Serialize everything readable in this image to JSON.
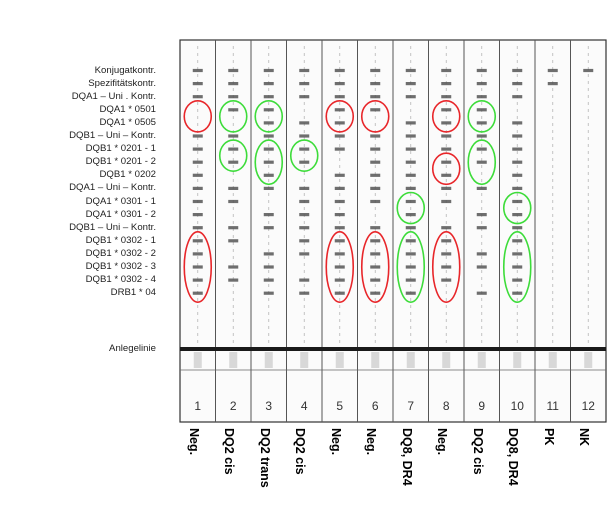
{
  "band_labels": [
    "Konjugatkontr.",
    "Spezifitätskontr.",
    "DQA1 – Uni . Kontr.",
    "DQA1 * 0501",
    "DQA1 * 0505",
    "DQB1 – Uni – Kontr.",
    "DQB1 * 0201 - 1",
    "DQB1 * 0201 - 2",
    "DQB1 * 0202",
    "DQA1 – Uni – Kontr.",
    "DQA1 * 0301 - 1",
    "DQA1 * 0301 - 2",
    "DQB1 – Uni – Kontr.",
    "DQB1 * 0302 - 1",
    "DQB1 * 0302 - 2",
    "DQB1 * 0302 - 3",
    "DQB1 * 0302 - 4",
    "DRB1 * 04"
  ],
  "baseline_label": "Anlegelinie",
  "lanes": [
    {
      "number": "1",
      "result": "Neg."
    },
    {
      "number": "2",
      "result": "DQ2 cis"
    },
    {
      "number": "3",
      "result": "DQ2 trans"
    },
    {
      "number": "4",
      "result": "DQ2 cis"
    },
    {
      "number": "5",
      "result": "Neg."
    },
    {
      "number": "6",
      "result": "Neg."
    },
    {
      "number": "7",
      "result": "DQ8, DR4"
    },
    {
      "number": "8",
      "result": "Neg."
    },
    {
      "number": "9",
      "result": "DQ2 cis"
    },
    {
      "number": "10",
      "result": "DQ8, DR4"
    },
    {
      "number": "11",
      "result": "PK"
    },
    {
      "number": "12",
      "result": "NK"
    }
  ],
  "colors": {
    "negative_marker": "#e8262a",
    "positive_marker": "#3ddc3a",
    "band": "#555555",
    "strip_border": "#333333"
  },
  "markers": [
    {
      "lane": 1,
      "from_band": 3,
      "to_band": 4,
      "color": "red"
    },
    {
      "lane": 1,
      "from_band": 13,
      "to_band": 17,
      "color": "red"
    },
    {
      "lane": 2,
      "from_band": 3,
      "to_band": 4,
      "color": "green"
    },
    {
      "lane": 2,
      "from_band": 6,
      "to_band": 7,
      "color": "green"
    },
    {
      "lane": 3,
      "from_band": 3,
      "to_band": 4,
      "color": "green"
    },
    {
      "lane": 3,
      "from_band": 6,
      "to_band": 8,
      "color": "green"
    },
    {
      "lane": 4,
      "from_band": 6,
      "to_band": 7,
      "color": "green"
    },
    {
      "lane": 5,
      "from_band": 3,
      "to_band": 4,
      "color": "red"
    },
    {
      "lane": 5,
      "from_band": 13,
      "to_band": 17,
      "color": "red"
    },
    {
      "lane": 6,
      "from_band": 3,
      "to_band": 4,
      "color": "red"
    },
    {
      "lane": 6,
      "from_band": 13,
      "to_band": 17,
      "color": "red"
    },
    {
      "lane": 7,
      "from_band": 10,
      "to_band": 11,
      "color": "green"
    },
    {
      "lane": 7,
      "from_band": 13,
      "to_band": 17,
      "color": "green"
    },
    {
      "lane": 8,
      "from_band": 3,
      "to_band": 4,
      "color": "red"
    },
    {
      "lane": 8,
      "from_band": 7,
      "to_band": 8,
      "color": "red"
    },
    {
      "lane": 8,
      "from_band": 13,
      "to_band": 17,
      "color": "red"
    },
    {
      "lane": 9,
      "from_band": 3,
      "to_band": 4,
      "color": "green"
    },
    {
      "lane": 9,
      "from_band": 6,
      "to_band": 8,
      "color": "green"
    },
    {
      "lane": 10,
      "from_band": 10,
      "to_band": 11,
      "color": "green"
    },
    {
      "lane": 10,
      "from_band": 13,
      "to_band": 17,
      "color": "green"
    }
  ]
}
